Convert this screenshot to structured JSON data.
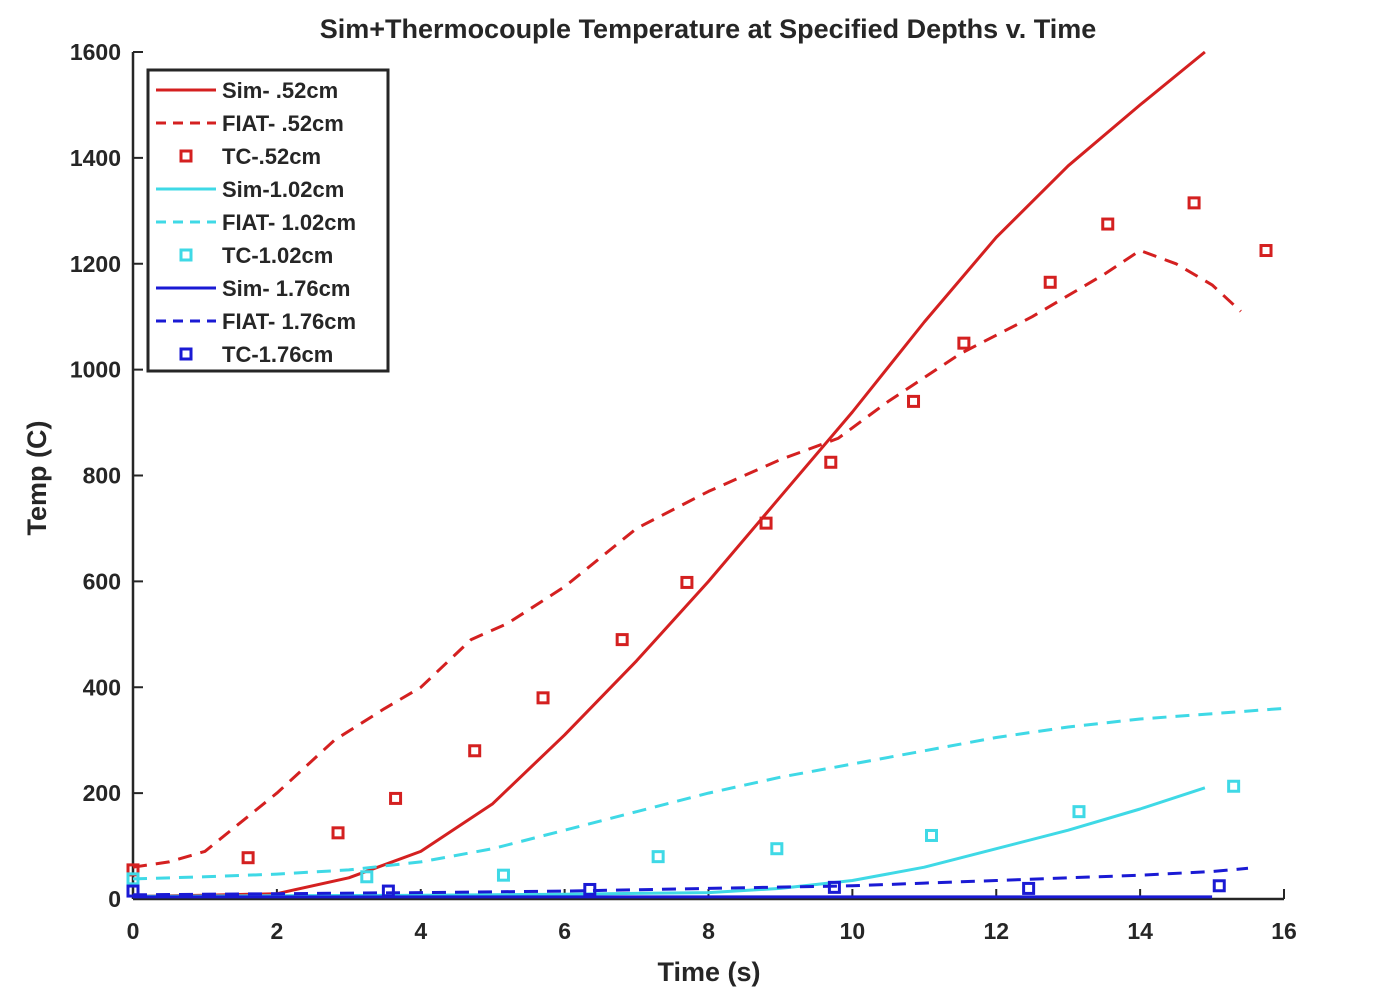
{
  "chart_data": {
    "type": "line",
    "title": "Sim+Thermocouple Temperature at Specified Depths v. Time",
    "xlabel": "Time (s)",
    "ylabel": "Temp (C)",
    "xlim": [
      0,
      16
    ],
    "ylim": [
      0,
      1600
    ],
    "xticks": [
      0,
      2,
      4,
      6,
      8,
      10,
      12,
      14,
      16
    ],
    "yticks": [
      0,
      200,
      400,
      600,
      800,
      1000,
      1200,
      1400,
      1600
    ],
    "grid": false,
    "legend_position": "top-left",
    "series": [
      {
        "name": "Sim- .52cm",
        "style": "solid",
        "color": "#d42020",
        "x": [
          0,
          1,
          2,
          3,
          4,
          5,
          6,
          7,
          8,
          9,
          10,
          11,
          12,
          13,
          14,
          14.9
        ],
        "y": [
          5,
          7,
          10,
          40,
          90,
          180,
          310,
          450,
          600,
          760,
          920,
          1090,
          1250,
          1385,
          1500,
          1600
        ]
      },
      {
        "name": "FIAT- .52cm",
        "style": "dashed",
        "color": "#d42020",
        "x": [
          0,
          0.5,
          1,
          2,
          2.8,
          3.5,
          4,
          4.7,
          5.2,
          6,
          7,
          8,
          9,
          9.8,
          10.5,
          11.5,
          12.5,
          13.5,
          14,
          14.5,
          15,
          15.4
        ],
        "y": [
          60,
          70,
          90,
          200,
          300,
          360,
          400,
          490,
          520,
          590,
          700,
          770,
          830,
          870,
          940,
          1030,
          1100,
          1180,
          1225,
          1200,
          1160,
          1110
        ]
      },
      {
        "name": "TC-.52cm",
        "style": "square",
        "color": "#d42020",
        "x": [
          0,
          1.6,
          2.85,
          3.65,
          4.75,
          5.7,
          6.8,
          7.7,
          8.8,
          9.7,
          10.85,
          11.55,
          12.75,
          13.55,
          14.75,
          15.75
        ],
        "y": [
          55,
          78,
          125,
          190,
          280,
          380,
          490,
          598,
          710,
          825,
          940,
          1050,
          1165,
          1275,
          1315,
          1225
        ]
      },
      {
        "name": "Sim-1.02cm",
        "style": "solid",
        "color": "#3fd9e6",
        "x": [
          0,
          2,
          4,
          6,
          8,
          9,
          10,
          11,
          12,
          13,
          14,
          14.9
        ],
        "y": [
          5,
          6,
          7,
          9,
          12,
          20,
          35,
          60,
          95,
          130,
          170,
          210
        ]
      },
      {
        "name": "FIAT- 1.02cm",
        "style": "dashed",
        "color": "#3fd9e6",
        "x": [
          0,
          1,
          2,
          3,
          4,
          5,
          6,
          7,
          8,
          9,
          10,
          11,
          12,
          13,
          14,
          15,
          16
        ],
        "y": [
          38,
          42,
          47,
          55,
          70,
          95,
          130,
          165,
          200,
          230,
          255,
          280,
          305,
          325,
          340,
          350,
          360
        ]
      },
      {
        "name": "TC-1.02cm",
        "style": "square",
        "color": "#3fd9e6",
        "x": [
          0,
          3.25,
          5.15,
          7.3,
          8.95,
          11.1,
          13.15,
          15.3
        ],
        "y": [
          38,
          42,
          45,
          80,
          95,
          120,
          165,
          213
        ]
      },
      {
        "name": "Sim- 1.76cm",
        "style": "solid",
        "color": "#1a1ad4",
        "x": [
          0,
          2,
          4,
          6,
          8,
          10,
          12,
          14,
          15
        ],
        "y": [
          4,
          4,
          4,
          4,
          4,
          4,
          4,
          4,
          4
        ]
      },
      {
        "name": "FIAT- 1.76cm",
        "style": "dashed",
        "color": "#1a1ad4",
        "x": [
          0,
          2,
          4,
          6,
          8,
          10,
          11,
          12,
          13,
          14,
          15,
          15.5
        ],
        "y": [
          8,
          10,
          12,
          15,
          20,
          25,
          30,
          35,
          40,
          45,
          52,
          58
        ]
      },
      {
        "name": "TC-1.76cm",
        "style": "square",
        "color": "#1a1ad4",
        "x": [
          0,
          3.55,
          6.35,
          9.75,
          12.45,
          15.1
        ],
        "y": [
          15,
          15,
          18,
          22,
          20,
          25
        ]
      }
    ]
  }
}
